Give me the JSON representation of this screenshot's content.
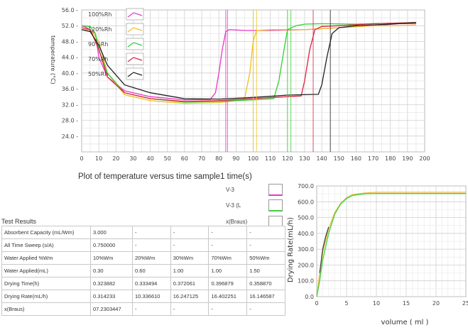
{
  "main_chart": {
    "caption": "Plot of temperature versus time sample1 time(s)",
    "ylabel": "temperature (°C)",
    "y_ticks": [
      "24.0",
      "28.0",
      "32.0",
      "36.0",
      "40.0",
      "44.0",
      "48.0",
      "52.0",
      "56.0"
    ],
    "x_ticks": [
      "0",
      "10",
      "20",
      "30",
      "40",
      "50",
      "60",
      "70",
      "80",
      "90",
      "100",
      "110",
      "120",
      "130",
      "140",
      "150",
      "160",
      "170",
      "180",
      "190",
      "200"
    ],
    "legend": [
      {
        "label": "100%Rh",
        "color": "#e838c8"
      },
      {
        "label": "120%Rh",
        "color": "#f0c020"
      },
      {
        "label": "90%Rh",
        "color": "#30d030"
      },
      {
        "label": "70%Rh",
        "color": "#e02040"
      },
      {
        "label": "50%Rh",
        "color": "#202020"
      }
    ]
  },
  "chart_data": [
    {
      "type": "line",
      "ylabel": "temperature (°C)",
      "xlim": [
        0,
        200
      ],
      "ylim": [
        20,
        56
      ],
      "grid": true,
      "legend": "top-left",
      "series": [
        {
          "name": "100%Rh",
          "color": "#e838c8",
          "points": [
            [
              0,
              52
            ],
            [
              3,
              51.5
            ],
            [
              8,
              50
            ],
            [
              10,
              44
            ],
            [
              15,
              39
            ],
            [
              25,
              35.5
            ],
            [
              40,
              34
            ],
            [
              60,
              33.2
            ],
            [
              75,
              33.3
            ],
            [
              78,
              35
            ],
            [
              80,
              40
            ],
            [
              82,
              46
            ],
            [
              84,
              50.5
            ],
            [
              86,
              51
            ],
            [
              95,
              50.8
            ],
            [
              110,
              50.8
            ],
            [
              130,
              51
            ],
            [
              150,
              51.5
            ],
            [
              170,
              52
            ],
            [
              185,
              52.5
            ],
            [
              195,
              52.5
            ]
          ]
        },
        {
          "name": "120%Rh",
          "color": "#f0c020",
          "points": [
            [
              0,
              51
            ],
            [
              5,
              51
            ],
            [
              10,
              48
            ],
            [
              15,
              40
            ],
            [
              25,
              34.5
            ],
            [
              40,
              33
            ],
            [
              60,
              32.3
            ],
            [
              80,
              32.5
            ],
            [
              90,
              33
            ],
            [
              95,
              33.5
            ],
            [
              98,
              40
            ],
            [
              100,
              48
            ],
            [
              102,
              50.8
            ],
            [
              110,
              51
            ],
            [
              130,
              51
            ],
            [
              150,
              51.5
            ],
            [
              170,
              52
            ],
            [
              185,
              52
            ],
            [
              195,
              52.2
            ]
          ]
        },
        {
          "name": "90%Rh",
          "color": "#30d030",
          "points": [
            [
              0,
              52
            ],
            [
              5,
              51.8
            ],
            [
              8,
              50
            ],
            [
              10,
              46
            ],
            [
              15,
              40
            ],
            [
              25,
              35
            ],
            [
              40,
              33.5
            ],
            [
              60,
              32.6
            ],
            [
              80,
              32.8
            ],
            [
              100,
              33.2
            ],
            [
              112,
              33.5
            ],
            [
              115,
              38
            ],
            [
              118,
              46
            ],
            [
              120,
              51
            ],
            [
              125,
              52
            ],
            [
              130,
              52.4
            ],
            [
              140,
              52.5
            ],
            [
              160,
              52.4
            ],
            [
              180,
              52.6
            ],
            [
              195,
              52.8
            ]
          ]
        },
        {
          "name": "70%Rh",
          "color": "#e02040",
          "points": [
            [
              0,
              51.5
            ],
            [
              5,
              51
            ],
            [
              10,
              46
            ],
            [
              15,
              39
            ],
            [
              25,
              35
            ],
            [
              40,
              33.5
            ],
            [
              60,
              32.8
            ],
            [
              80,
              33
            ],
            [
              100,
              33.5
            ],
            [
              120,
              34
            ],
            [
              128,
              34.2
            ],
            [
              130,
              38
            ],
            [
              133,
              46
            ],
            [
              136,
              51
            ],
            [
              140,
              51.8
            ],
            [
              150,
              52
            ],
            [
              170,
              52.5
            ],
            [
              195,
              52.8
            ]
          ]
        },
        {
          "name": "50%Rh",
          "color": "#202020",
          "points": [
            [
              0,
              51
            ],
            [
              5,
              50.5
            ],
            [
              10,
              47
            ],
            [
              15,
              42
            ],
            [
              25,
              37
            ],
            [
              40,
              35
            ],
            [
              60,
              33.5
            ],
            [
              80,
              33.4
            ],
            [
              100,
              33.8
            ],
            [
              120,
              34.4
            ],
            [
              138,
              34.6
            ],
            [
              140,
              37
            ],
            [
              143,
              44
            ],
            [
              146,
              50
            ],
            [
              150,
              51.5
            ],
            [
              160,
              52
            ],
            [
              180,
              52.4
            ],
            [
              195,
              52.8
            ]
          ]
        }
      ]
    },
    {
      "type": "line",
      "xlabel": "volume ( ml )",
      "ylabel": "Drying Rate(mL/h)",
      "xlim": [
        0,
        25
      ],
      "ylim": [
        0,
        700
      ],
      "grid": true,
      "series": [
        {
          "name": "",
          "color": "#f0b838",
          "points": [
            [
              0,
              0
            ],
            [
              0.5,
              150
            ],
            [
              1,
              280
            ],
            [
              2,
              430
            ],
            [
              3,
              530
            ],
            [
              4,
              590
            ],
            [
              5,
              625
            ],
            [
              6,
              645
            ],
            [
              8,
              655
            ],
            [
              10,
              660
            ],
            [
              15,
              660
            ],
            [
              20,
              660
            ],
            [
              25,
              660
            ]
          ]
        },
        {
          "name": "",
          "color": "#40d040",
          "points": [
            [
              0,
              0
            ],
            [
              0.5,
              100
            ],
            [
              1,
              230
            ],
            [
              2,
              400
            ],
            [
              3,
              520
            ],
            [
              4,
              585
            ],
            [
              5,
              620
            ],
            [
              6,
              640
            ],
            [
              8,
              650
            ],
            [
              10,
              652
            ],
            [
              15,
              652
            ],
            [
              20,
              652
            ],
            [
              25,
              652
            ]
          ]
        },
        {
          "name": "",
          "color": "#404040",
          "points": [
            [
              0.5,
              150
            ],
            [
              1,
              300
            ],
            [
              1.5,
              380
            ],
            [
              2,
              440
            ]
          ]
        }
      ]
    }
  ],
  "side_legend": [
    {
      "label": "V-3",
      "color": "#e838c8"
    },
    {
      "label": "V-3 (L",
      "color": "#40d040"
    },
    {
      "label": "x(Braus)",
      "color": "#6080f0"
    }
  ],
  "rate_chart": {
    "xlabel": "volume ( ml )",
    "ylabel": "Drying Rate(mL/h)",
    "y_ticks": [
      "0.0",
      "100.0",
      "200.0",
      "300.0",
      "400.0",
      "500.0",
      "600.0",
      "700.0"
    ],
    "x_ticks": [
      "0",
      "5",
      "10",
      "15",
      "20",
      "25"
    ]
  },
  "test_results": {
    "title": "Test Results",
    "rows": [
      [
        "Absorbent Capacity (mL/Wm)",
        "3.000",
        "-",
        "-",
        "-",
        "-"
      ],
      [
        "All Time Sweep (s/A)",
        "0.750000",
        "-",
        "-",
        "-",
        "-"
      ],
      [
        "Water Applied %Wm",
        "10%Wm",
        "20%Wm",
        "30%Wm",
        "70%Wm",
        "50%Wm"
      ],
      [
        "Water Applied(mL)",
        "0.30",
        "0.60",
        "1.00",
        "1.00",
        "1.50"
      ],
      [
        "Drying Time(h)",
        "0.323882",
        "0.333494",
        "0.372061",
        "0.396879",
        "0.358870"
      ],
      [
        "Drying Rate(mL/h)",
        "0.314233",
        "10.336610",
        "16.247125",
        "16.402251",
        "16.146587"
      ],
      [
        "x(Braus)",
        "07.2303447",
        "-",
        "-",
        "-",
        "-"
      ]
    ]
  }
}
